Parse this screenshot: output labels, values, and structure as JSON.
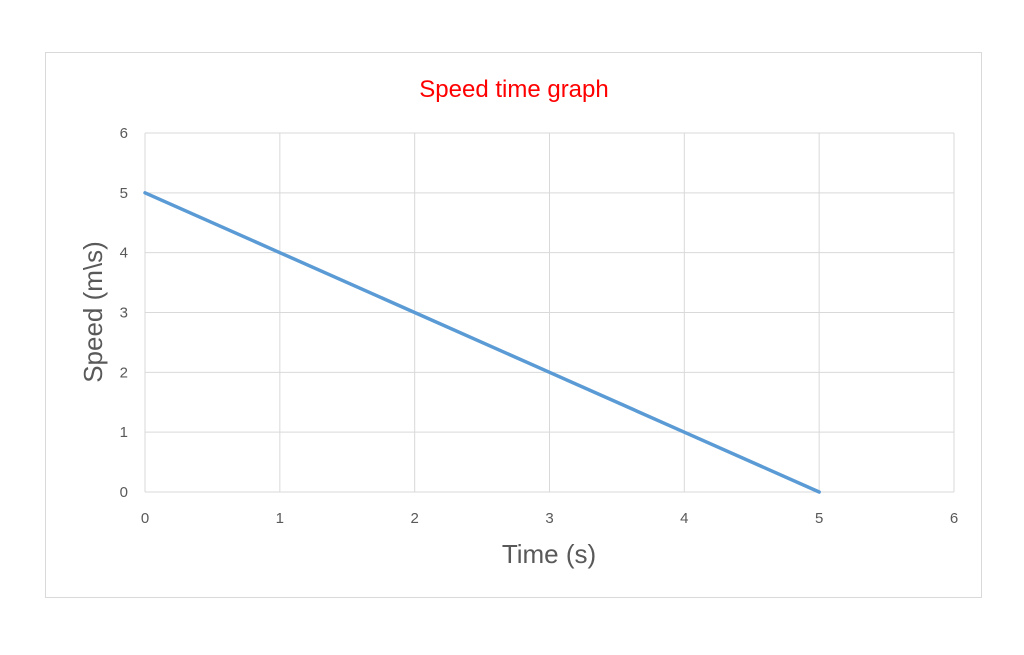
{
  "chart_data": {
    "type": "line",
    "title": "Speed time graph",
    "xlabel": "Time (s)",
    "ylabel": "Speed (m\\s)",
    "xlim": [
      0,
      6
    ],
    "ylim": [
      0,
      6
    ],
    "x_ticks": [
      "0",
      "1",
      "2",
      "3",
      "4",
      "5",
      "6"
    ],
    "y_ticks": [
      "0",
      "1",
      "2",
      "3",
      "4",
      "5",
      "6"
    ],
    "grid": true,
    "legend": "none",
    "series": [
      {
        "x": [
          0,
          1,
          2,
          3,
          4,
          5
        ],
        "values": [
          5,
          4,
          3,
          2,
          1,
          0
        ],
        "color": "#5b9bd5"
      }
    ],
    "colors": {
      "title": "#ff0000",
      "gridline": "#d9d9d9",
      "axis_text": "#595959"
    }
  }
}
